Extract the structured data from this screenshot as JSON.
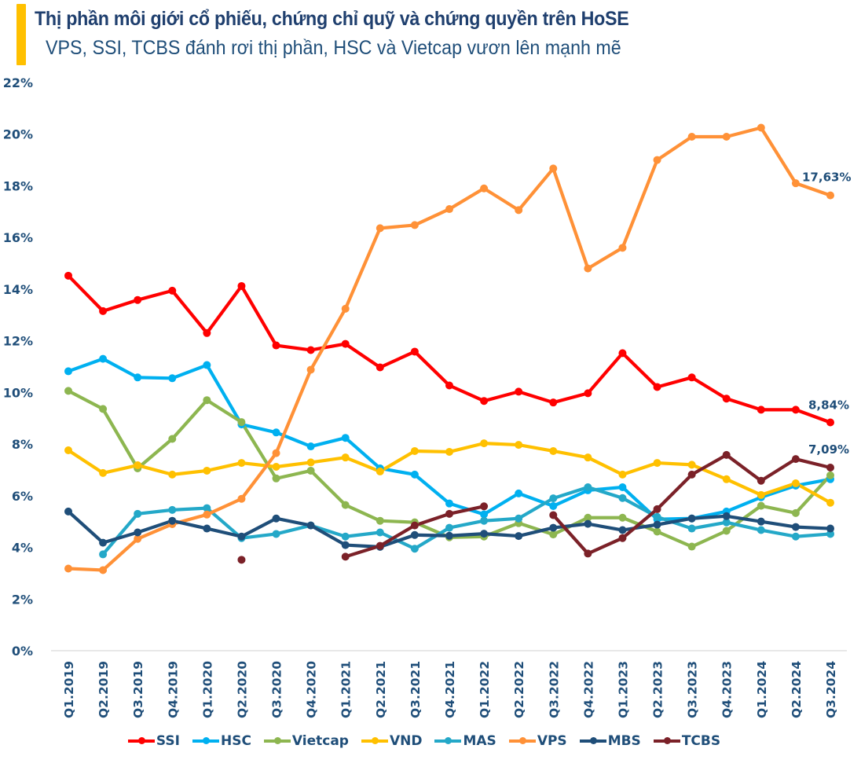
{
  "header": {
    "title": "Thị phần môi giới cổ phiếu, chứng chỉ quỹ và chứng quyền trên HoSE",
    "subtitle": "VPS, SSI, TCBS đánh rơi thị phần, HSC và Vietcap vươn lên mạnh mẽ",
    "accent_color": "#FFC000"
  },
  "chart_data": {
    "type": "line",
    "title": "Thị phần môi giới cổ phiếu, chứng chỉ quỹ và chứng quyền trên HoSE",
    "subtitle": "VPS, SSI, TCBS đánh rơi thị phần, HSC và Vietcap vươn lên mạnh mẽ",
    "xlabel": "",
    "ylabel": "",
    "ylim": [
      0,
      22
    ],
    "y_ticks": [
      0,
      2,
      4,
      6,
      8,
      10,
      12,
      14,
      16,
      18,
      20,
      22
    ],
    "y_tick_labels": [
      "0%",
      "2%",
      "4%",
      "6%",
      "8%",
      "10%",
      "12%",
      "14%",
      "16%",
      "18%",
      "20%",
      "22%"
    ],
    "grid": false,
    "legend_position": "bottom",
    "categories": [
      "Q1.2019",
      "Q2.2019",
      "Q3.2019",
      "Q4.2019",
      "Q1.2020",
      "Q2.2020",
      "Q3.2020",
      "Q4.2020",
      "Q1.2021",
      "Q2.2021",
      "Q3.2021",
      "Q4.2021",
      "Q1.2022",
      "Q2.2022",
      "Q3.2022",
      "Q4.2022",
      "Q1.2023",
      "Q2.2023",
      "Q3.2023",
      "Q4.2023",
      "Q1.2024",
      "Q2.2024",
      "Q3.2024"
    ],
    "series": [
      {
        "name": "SSI",
        "color": "#FF0000",
        "values": [
          14.52,
          13.15,
          13.58,
          13.94,
          12.3,
          14.12,
          11.82,
          11.64,
          11.88,
          10.97,
          11.58,
          10.27,
          9.67,
          10.03,
          9.61,
          9.97,
          11.52,
          10.21,
          10.58,
          9.76,
          9.33,
          9.33,
          8.84
        ]
      },
      {
        "name": "HSC",
        "color": "#00B0F0",
        "values": [
          10.82,
          11.3,
          10.58,
          10.55,
          11.06,
          8.76,
          8.45,
          7.91,
          8.24,
          7.06,
          6.82,
          5.7,
          5.28,
          6.09,
          5.6,
          6.21,
          6.33,
          5.09,
          5.12,
          5.39,
          5.94,
          6.39,
          6.64
        ]
      },
      {
        "name": "Vietcap",
        "color": "#8DB650",
        "values": [
          10.06,
          9.36,
          7.06,
          8.2,
          9.7,
          8.85,
          6.67,
          6.97,
          5.64,
          5.03,
          4.97,
          4.39,
          4.42,
          4.94,
          4.5,
          5.15,
          5.15,
          4.61,
          4.03,
          4.64,
          5.61,
          5.33,
          6.79
        ]
      },
      {
        "name": "VND",
        "color": "#FFC000",
        "values": [
          7.76,
          6.88,
          7.18,
          6.82,
          6.97,
          7.27,
          7.12,
          7.29,
          7.48,
          6.94,
          7.73,
          7.7,
          8.03,
          7.97,
          7.73,
          7.48,
          6.82,
          7.27,
          7.2,
          6.64,
          6.03,
          6.48,
          5.73
        ]
      },
      {
        "name": "MAS",
        "color": "#24A8C8",
        "values": [
          null,
          3.73,
          5.3,
          5.45,
          5.52,
          4.36,
          4.52,
          4.85,
          4.42,
          4.58,
          3.95,
          4.76,
          5.03,
          5.12,
          5.9,
          6.33,
          5.91,
          5.18,
          4.73,
          4.97,
          4.67,
          4.42,
          4.52
        ]
      },
      {
        "name": "VPS",
        "color": "#FF9137",
        "values": [
          3.18,
          3.12,
          4.33,
          4.9,
          5.27,
          5.88,
          7.65,
          10.88,
          13.24,
          16.36,
          16.48,
          17.1,
          17.9,
          17.06,
          18.67,
          14.8,
          15.6,
          19.0,
          19.9,
          19.9,
          20.25,
          18.1,
          17.63
        ]
      },
      {
        "name": "MBS",
        "color": "#1F4E79",
        "values": [
          5.39,
          4.18,
          4.58,
          5.03,
          4.73,
          4.42,
          5.12,
          4.85,
          4.09,
          4.02,
          4.48,
          4.45,
          4.53,
          4.44,
          4.76,
          4.91,
          4.67,
          4.88,
          5.12,
          5.21,
          5.0,
          4.79,
          4.73
        ]
      },
      {
        "name": "TCBS",
        "color": "#7B2128",
        "values": [
          null,
          null,
          null,
          null,
          null,
          3.52,
          null,
          null,
          3.64,
          4.06,
          4.85,
          5.3,
          5.59,
          null,
          5.25,
          3.76,
          4.36,
          5.48,
          6.82,
          7.58,
          6.58,
          7.42,
          7.09
        ]
      }
    ],
    "annotations": [
      {
        "series": "VPS",
        "category": "Q3.2024",
        "text": "17,63%"
      },
      {
        "series": "SSI",
        "category": "Q3.2024",
        "text": "8,84%"
      },
      {
        "series": "TCBS",
        "category": "Q3.2024",
        "text": "7,09%"
      }
    ]
  }
}
